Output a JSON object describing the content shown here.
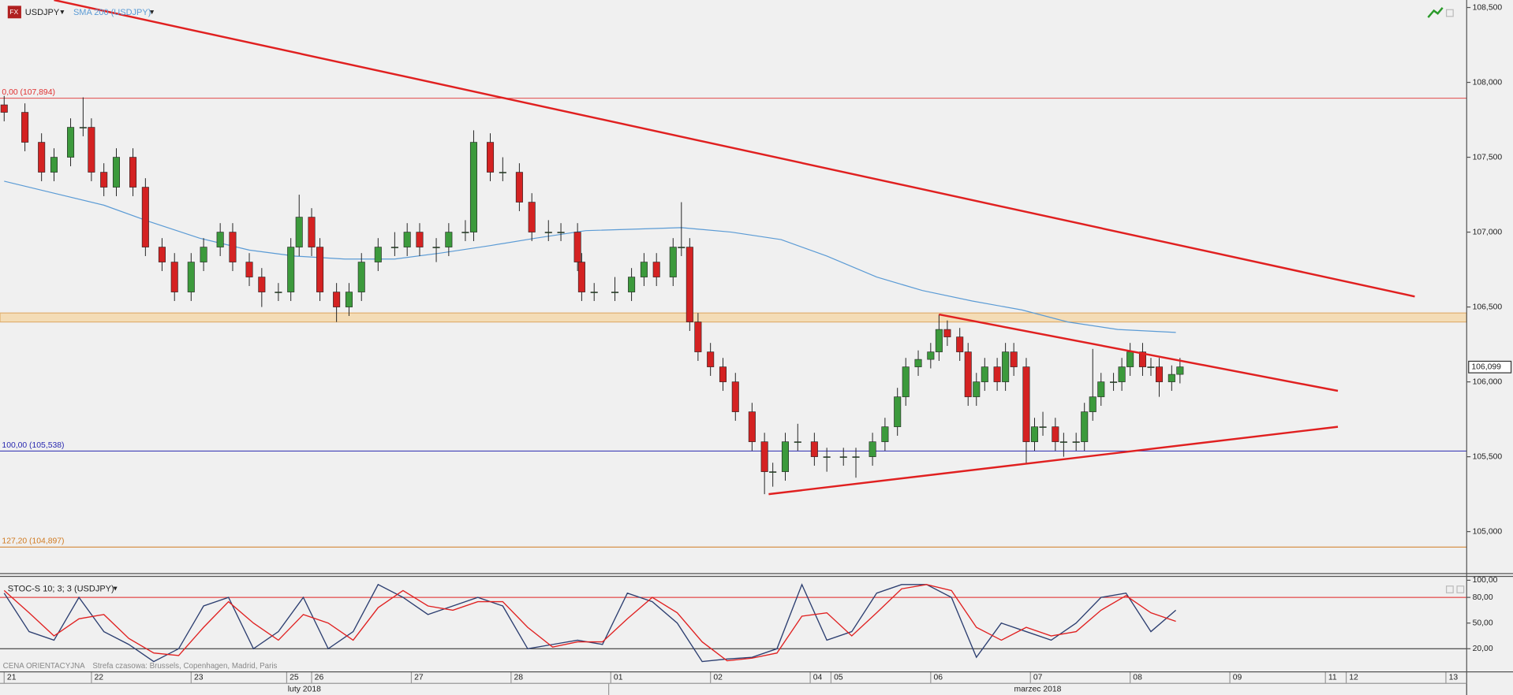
{
  "chart_data": [
    {
      "type": "candlestick",
      "title": "USDJPY",
      "x": [
        0,
        5,
        9,
        12,
        16,
        19,
        21,
        24,
        27,
        31,
        34,
        38,
        41,
        45,
        48,
        52,
        55,
        59,
        62,
        66,
        69,
        71,
        74,
        76,
        80,
        83,
        86,
        90,
        94,
        97,
        100,
        104,
        107,
        111,
        113,
        117,
        120,
        124,
        127,
        131,
        134,
        138,
        139,
        142,
        147,
        151,
        154,
        157,
        161,
        163,
        165,
        167,
        170,
        173,
        176,
        180,
        183,
        185,
        188,
        191,
        195,
        198,
        202,
        205,
        209,
        212,
        215,
        217,
        220,
        223,
        225,
        227,
        230,
        232,
        234,
        236,
        239,
        241,
        243,
        246,
        248,
        250,
        253,
        255,
        258,
        260,
        262,
        264,
        267,
        269,
        271,
        274,
        276,
        278,
        281,
        283
      ],
      "open": [
        107.85,
        107.8,
        107.6,
        107.4,
        107.5,
        107.7,
        107.7,
        107.4,
        107.3,
        107.5,
        107.3,
        106.9,
        106.8,
        106.6,
        106.8,
        106.9,
        107.0,
        106.8,
        106.7,
        106.6,
        106.6,
        106.9,
        107.1,
        106.9,
        106.6,
        106.5,
        106.6,
        106.8,
        106.9,
        106.9,
        107.0,
        106.9,
        106.9,
        107.0,
        107.0,
        107.6,
        107.4,
        107.4,
        107.2,
        107.0,
        107.0,
        107.0,
        106.8,
        106.6,
        106.6,
        106.6,
        106.7,
        106.8,
        106.7,
        106.9,
        106.9,
        106.4,
        106.2,
        106.1,
        106.0,
        105.8,
        105.6,
        105.4,
        105.4,
        105.6,
        105.6,
        105.5,
        105.5,
        105.5,
        105.5,
        105.6,
        105.7,
        105.9,
        106.1,
        106.15,
        106.2,
        106.35,
        106.3,
        106.2,
        105.9,
        106.0,
        106.1,
        106.0,
        106.2,
        106.1,
        105.6,
        105.7,
        105.7,
        105.6,
        105.6,
        105.6,
        105.8,
        105.9,
        106.0,
        106.0,
        106.1,
        106.2,
        106.1,
        106.1,
        106.0,
        106.05
      ],
      "high": [
        107.91,
        107.86,
        107.66,
        107.56,
        107.76,
        107.9,
        107.76,
        107.46,
        107.56,
        107.56,
        107.36,
        106.96,
        106.86,
        106.86,
        106.96,
        107.06,
        107.06,
        106.86,
        106.76,
        106.66,
        106.96,
        107.25,
        107.16,
        106.96,
        106.66,
        106.66,
        106.86,
        106.96,
        107.0,
        107.06,
        107.06,
        106.96,
        107.06,
        107.08,
        107.68,
        107.66,
        107.5,
        107.46,
        107.26,
        107.08,
        107.06,
        107.06,
        106.86,
        106.66,
        106.7,
        106.76,
        106.86,
        106.86,
        106.96,
        107.2,
        106.96,
        106.46,
        106.26,
        106.16,
        106.06,
        105.86,
        105.66,
        105.46,
        105.66,
        105.72,
        105.66,
        105.56,
        105.56,
        105.56,
        105.66,
        105.76,
        105.96,
        106.16,
        106.21,
        106.26,
        106.45,
        106.41,
        106.36,
        106.26,
        106.06,
        106.16,
        106.16,
        106.26,
        106.26,
        106.16,
        105.76,
        105.8,
        105.76,
        105.66,
        105.66,
        105.86,
        106.22,
        106.06,
        106.06,
        106.16,
        106.26,
        106.26,
        106.16,
        106.16,
        106.11,
        106.16
      ],
      "low": [
        107.74,
        107.54,
        107.34,
        107.34,
        107.44,
        107.64,
        107.34,
        107.24,
        107.24,
        107.24,
        106.84,
        106.74,
        106.54,
        106.54,
        106.74,
        106.84,
        106.74,
        106.64,
        106.5,
        106.54,
        106.54,
        106.84,
        106.84,
        106.54,
        106.4,
        106.44,
        106.54,
        106.74,
        106.84,
        106.84,
        106.84,
        106.8,
        106.84,
        106.94,
        106.94,
        107.34,
        107.34,
        107.14,
        106.94,
        106.94,
        106.94,
        106.74,
        106.54,
        106.54,
        106.54,
        106.54,
        106.64,
        106.64,
        106.64,
        106.84,
        106.34,
        106.14,
        106.04,
        105.94,
        105.74,
        105.54,
        105.25,
        105.3,
        105.34,
        105.54,
        105.44,
        105.4,
        105.44,
        105.36,
        105.44,
        105.54,
        105.64,
        105.84,
        106.04,
        106.09,
        106.14,
        106.24,
        106.14,
        105.84,
        105.84,
        105.94,
        105.94,
        105.94,
        106.04,
        105.45,
        105.54,
        105.64,
        105.54,
        105.5,
        105.54,
        105.54,
        105.74,
        105.84,
        105.94,
        105.94,
        106.04,
        106.04,
        106.04,
        105.9,
        105.94,
        105.99
      ],
      "close": [
        107.8,
        107.6,
        107.4,
        107.5,
        107.7,
        107.7,
        107.4,
        107.3,
        107.5,
        107.3,
        106.9,
        106.8,
        106.6,
        106.8,
        106.9,
        107.0,
        106.8,
        106.7,
        106.6,
        106.6,
        106.9,
        107.1,
        106.9,
        106.6,
        106.5,
        106.6,
        106.8,
        106.9,
        106.9,
        107.0,
        106.9,
        106.9,
        107.0,
        107.0,
        107.6,
        107.4,
        107.4,
        107.2,
        107.0,
        107.0,
        107.0,
        106.8,
        106.6,
        106.6,
        106.6,
        106.7,
        106.8,
        106.7,
        106.9,
        106.9,
        106.4,
        106.2,
        106.1,
        106.0,
        105.8,
        105.6,
        105.4,
        105.4,
        105.6,
        105.6,
        105.5,
        105.5,
        105.5,
        105.5,
        105.6,
        105.7,
        105.9,
        106.1,
        106.15,
        106.2,
        106.35,
        106.3,
        106.2,
        105.9,
        106.0,
        106.1,
        106.0,
        106.2,
        106.1,
        105.6,
        105.7,
        105.7,
        105.6,
        105.6,
        105.6,
        105.8,
        105.9,
        106.0,
        106.0,
        106.1,
        106.2,
        106.1,
        106.1,
        106.0,
        106.05,
        106.1
      ],
      "up_color": "#3c9a3c",
      "down_color": "#d42222",
      "sma": {
        "name": "SMA 200 (USDJPY)",
        "color": "#5b9bd5",
        "x": [
          0,
          12,
          24,
          35,
          47,
          59,
          70,
          82,
          94,
          105,
          117,
          128,
          140,
          152,
          163,
          175,
          187,
          198,
          210,
          221,
          233,
          245,
          256,
          268,
          282
        ],
        "values": [
          107.34,
          107.26,
          107.18,
          107.07,
          106.96,
          106.88,
          106.84,
          106.82,
          106.82,
          106.86,
          106.91,
          106.96,
          107.01,
          107.02,
          107.03,
          107.0,
          106.95,
          106.84,
          106.7,
          106.61,
          106.54,
          106.48,
          106.4,
          106.35,
          106.33
        ]
      },
      "trendlines": [
        {
          "color": "#e02020",
          "x": [
            12,
            339.5
          ],
          "values": [
            108.55,
            106.57
          ]
        },
        {
          "color": "#e02020",
          "x": [
            225,
            321
          ],
          "values": [
            106.45,
            105.94
          ]
        },
        {
          "color": "#e02020",
          "x": [
            184,
            321
          ],
          "values": [
            105.25,
            105.7
          ]
        }
      ],
      "levels": [
        {
          "value": 107.894,
          "label": "0,00 (107,894)",
          "color": "#e03030"
        },
        {
          "value": 105.538,
          "label": "100,00 (105,538)",
          "color": "#2a2ab0"
        },
        {
          "value": 104.897,
          "label": "127,20 (104,897)",
          "color": "#d07a20"
        }
      ],
      "zone": [
        106.4,
        106.46
      ],
      "last_price": {
        "value": 106.099,
        "label": "106,099"
      },
      "xlim": [
        -1,
        352
      ],
      "ylim": [
        104.72,
        108.55
      ],
      "yticks": [
        {
          "value": 105,
          "label": "105,000"
        },
        {
          "value": 105.5,
          "label": "105,500"
        },
        {
          "value": 106,
          "label": "106,000"
        },
        {
          "value": 106.5,
          "label": "106,500"
        },
        {
          "value": 107,
          "label": "107,000"
        },
        {
          "value": 107.5,
          "label": "107,500"
        },
        {
          "value": 108,
          "label": "108,000"
        },
        {
          "value": 108.5,
          "label": "108,500"
        }
      ],
      "xticks": [
        {
          "value": 0,
          "label": "21"
        },
        {
          "value": 21,
          "label": "22"
        },
        {
          "value": 45,
          "label": "23"
        },
        {
          "value": 68,
          "label": "25"
        },
        {
          "value": 74,
          "label": "26"
        },
        {
          "value": 98,
          "label": "27"
        },
        {
          "value": 122,
          "label": "28"
        },
        {
          "value": 146,
          "label": "01"
        },
        {
          "value": 170,
          "label": "02"
        },
        {
          "value": 194,
          "label": "04"
        },
        {
          "value": 199,
          "label": "05"
        },
        {
          "value": 223,
          "label": "06"
        },
        {
          "value": 247,
          "label": "07"
        },
        {
          "value": 271,
          "label": "08"
        },
        {
          "value": 295,
          "label": "09"
        },
        {
          "value": 318,
          "label": "11"
        },
        {
          "value": 323,
          "label": "12"
        },
        {
          "value": 347,
          "label": "13"
        }
      ],
      "xsections": [
        {
          "label": "luty 2018",
          "start": -1,
          "end": 145.5
        },
        {
          "label": "marzec 2018",
          "start": 145.5,
          "end": 352
        }
      ]
    },
    {
      "type": "line",
      "title": "STOC-S 10; 3; 3 (USDJPY)",
      "x": [
        0,
        6,
        12,
        18,
        24,
        30,
        36,
        42,
        48,
        54,
        60,
        66,
        72,
        78,
        84,
        90,
        96,
        102,
        108,
        114,
        120,
        126,
        132,
        138,
        144,
        150,
        156,
        162,
        168,
        174,
        180,
        186,
        192,
        198,
        204,
        210,
        216,
        222,
        228,
        234,
        240,
        246,
        252,
        258,
        264,
        270,
        276,
        282
      ],
      "series": [
        {
          "color": "#2c3e70",
          "values": [
            85,
            40,
            30,
            80,
            40,
            25,
            5,
            20,
            70,
            80,
            20,
            40,
            80,
            20,
            40,
            95,
            80,
            60,
            70,
            80,
            70,
            20,
            25,
            30,
            25,
            85,
            75,
            50,
            5,
            8,
            10,
            20,
            95,
            30,
            40,
            85,
            95,
            95,
            80,
            10,
            50,
            40,
            30,
            50,
            80,
            85,
            40,
            65
          ]
        },
        {
          "color": "#e02020",
          "values": [
            88,
            62,
            35,
            55,
            60,
            32,
            15,
            12,
            45,
            75,
            50,
            30,
            60,
            50,
            30,
            68,
            88,
            70,
            65,
            75,
            75,
            45,
            22,
            28,
            28,
            55,
            80,
            62,
            28,
            6,
            9,
            15,
            58,
            62,
            35,
            62,
            90,
            95,
            88,
            45,
            30,
            45,
            35,
            40,
            65,
            82,
            62,
            52
          ]
        }
      ],
      "levels": [
        {
          "value": 80,
          "color": "#e02020"
        },
        {
          "value": 20,
          "color": "#222222"
        }
      ],
      "xlim": [
        -1,
        352
      ],
      "ylim": [
        -7,
        104.5
      ],
      "yticks": [
        {
          "value": 20,
          "label": "20,00"
        },
        {
          "value": 50,
          "label": "50,00"
        },
        {
          "value": 80,
          "label": "80,00"
        },
        {
          "value": 100,
          "label": "100,00"
        }
      ]
    }
  ],
  "footer": {
    "source": "CENA ORIENTACYJNA",
    "timezone": "Strefa czasowa: Brussels, Copenhagen, Madrid, Paris"
  }
}
